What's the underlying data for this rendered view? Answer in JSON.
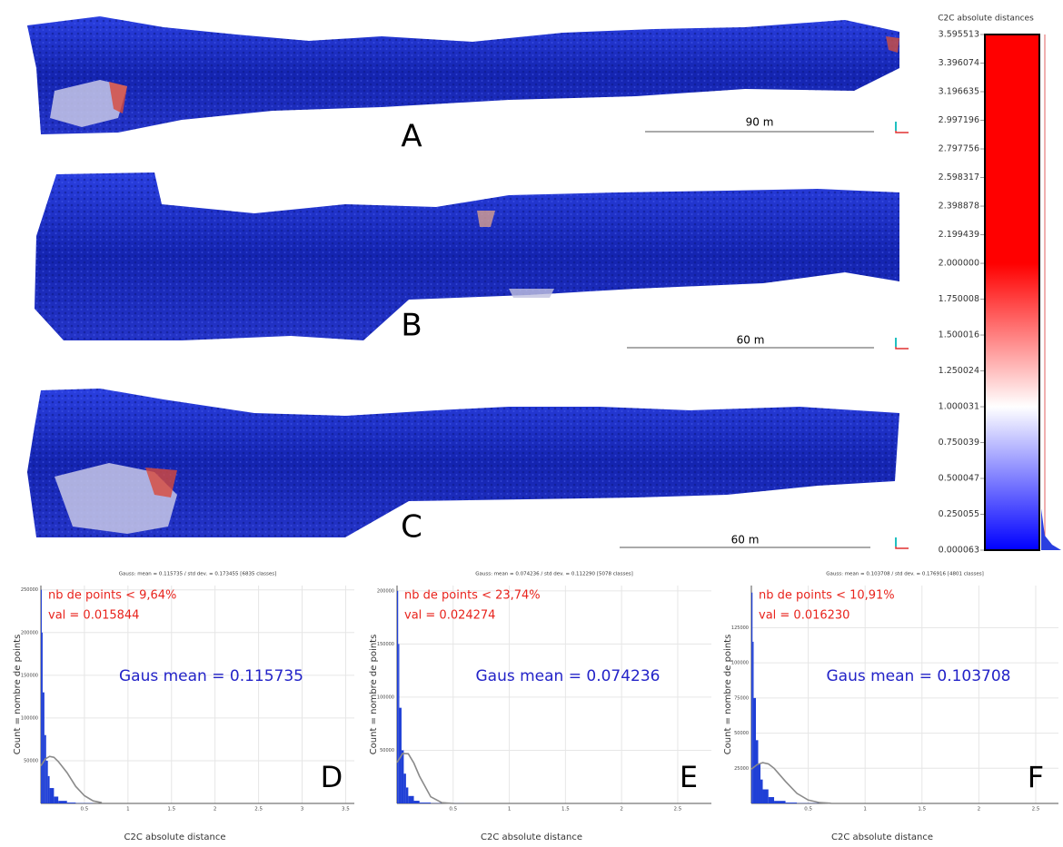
{
  "panels": [
    {
      "label": "A",
      "scale": "90 m"
    },
    {
      "label": "B",
      "scale": "60 m"
    },
    {
      "label": "C",
      "scale": "60 m"
    }
  ],
  "chart_data": [
    {
      "type": "colorbar",
      "title": "C2C absolute distances",
      "ylim": [
        6.3e-05,
        3.595513
      ],
      "yticks": [
        3.595513,
        3.396074,
        3.196635,
        2.997196,
        2.797756,
        2.598317,
        2.398878,
        2.199439,
        {
          "value": 2,
          "label": "2.000000"
        },
        1.750008,
        1.500016,
        1.250024,
        1.000031,
        0.750039,
        0.500047,
        0.250055,
        6.3e-05
      ],
      "colors": [
        {
          "value": 6.3e-05,
          "color": "#0000ff"
        },
        {
          "value": 1.000031,
          "color": "#ffffff"
        },
        {
          "value": 2,
          "color": "#ff0000"
        },
        {
          "value": 3.595513,
          "color": "#ff0000"
        }
      ]
    },
    {
      "type": "histogram",
      "label": "D",
      "title": "Gauss: mean = 0.115735 / std dev. = 0.173455 [6835 classes]",
      "annotations": [
        {
          "text": "nb de points < 9,64%",
          "color": "#e8231c"
        },
        {
          "text": "val = 0.015844",
          "color": "#e8231c"
        },
        {
          "text": "Gaus mean = 0.115735",
          "color": "#2323c8"
        }
      ],
      "xlabel": "C2C absolute distance",
      "ylabel": "Count = nombre de points",
      "xlim": [
        0,
        3.6
      ],
      "xticks": [
        0.5,
        1,
        1.5,
        2,
        2.5,
        3,
        3.5
      ],
      "ylim": [
        0,
        255000
      ],
      "yticks": [
        50000,
        100000,
        150000,
        200000,
        250000
      ],
      "bins": [
        0,
        0.01,
        0.02,
        0.04,
        0.06,
        0.08,
        0.1,
        0.15,
        0.2,
        0.3,
        0.4,
        0.6
      ],
      "values": [
        250000,
        200000,
        130000,
        80000,
        50000,
        32000,
        18000,
        8000,
        3000,
        1000,
        300
      ],
      "color": "#1f3fd6",
      "grid": true,
      "curve": {
        "color": "#8a8a8a",
        "x": [
          0,
          0.05,
          0.1,
          0.15,
          0.2,
          0.3,
          0.4,
          0.5,
          0.6,
          0.7
        ],
        "values": [
          44000,
          52000,
          55000,
          54000,
          49000,
          36000,
          20000,
          9000,
          3000,
          800
        ]
      }
    },
    {
      "type": "histogram",
      "label": "E",
      "title": "Gauss: mean = 0.074236 / std dev. = 0.112290 [5078 classes]",
      "annotations": [
        {
          "text": "nb de points < 23,74%",
          "color": "#e8231c"
        },
        {
          "text": "val = 0.024274",
          "color": "#e8231c"
        },
        {
          "text": "Gaus mean = 0.074236",
          "color": "#2323c8"
        }
      ],
      "xlabel": "C2C absolute distance",
      "ylabel": "Count = nombre de points",
      "xlim": [
        0,
        2.8
      ],
      "xticks": [
        0.5,
        1,
        1.5,
        2,
        2.5
      ],
      "ylim": [
        0,
        205000
      ],
      "yticks": [
        50000,
        100000,
        150000,
        200000
      ],
      "bins": [
        0,
        0.01,
        0.02,
        0.04,
        0.06,
        0.08,
        0.1,
        0.15,
        0.2,
        0.3,
        0.4,
        0.6
      ],
      "values": [
        200000,
        150000,
        90000,
        50000,
        28000,
        15000,
        7000,
        2500,
        800,
        200,
        50
      ],
      "color": "#1f3fd6",
      "grid": true,
      "curve": {
        "color": "#8a8a8a",
        "x": [
          0,
          0.05,
          0.1,
          0.15,
          0.2,
          0.3,
          0.4,
          0.5
        ],
        "values": [
          38500,
          47000,
          46700,
          38000,
          25600,
          6200,
          700,
          0
        ]
      }
    },
    {
      "type": "histogram",
      "label": "F",
      "title": "Gauss: mean = 0.103708 / std dev. = 0.176916 [4801 classes]",
      "annotations": [
        {
          "text": "nb de points < 10,91%",
          "color": "#e8231c"
        },
        {
          "text": "val = 0.016230",
          "color": "#e8231c"
        },
        {
          "text": "Gaus mean = 0.103708",
          "color": "#2323c8"
        }
      ],
      "xlabel": "C2C absolute distance",
      "ylabel": "Count = nombre de points",
      "xlim": [
        0,
        2.7
      ],
      "xticks": [
        0.5,
        1,
        1.5,
        2,
        2.5
      ],
      "ylim": [
        0,
        155000
      ],
      "yticks": [
        25000,
        50000,
        75000,
        100000,
        125000
      ],
      "bins": [
        0,
        0.01,
        0.02,
        0.04,
        0.06,
        0.08,
        0.1,
        0.15,
        0.2,
        0.3,
        0.4,
        0.6
      ],
      "values": [
        150000,
        115000,
        75000,
        45000,
        28000,
        17000,
        10000,
        4500,
        1800,
        600,
        150
      ],
      "color": "#1f3fd6",
      "grid": true,
      "curve": {
        "color": "#8a8a8a",
        "x": [
          0,
          0.05,
          0.1,
          0.15,
          0.2,
          0.3,
          0.4,
          0.5,
          0.6,
          0.7
        ],
        "values": [
          24400,
          27600,
          29000,
          28100,
          25000,
          15600,
          7200,
          2400,
          550,
          100
        ]
      }
    }
  ]
}
